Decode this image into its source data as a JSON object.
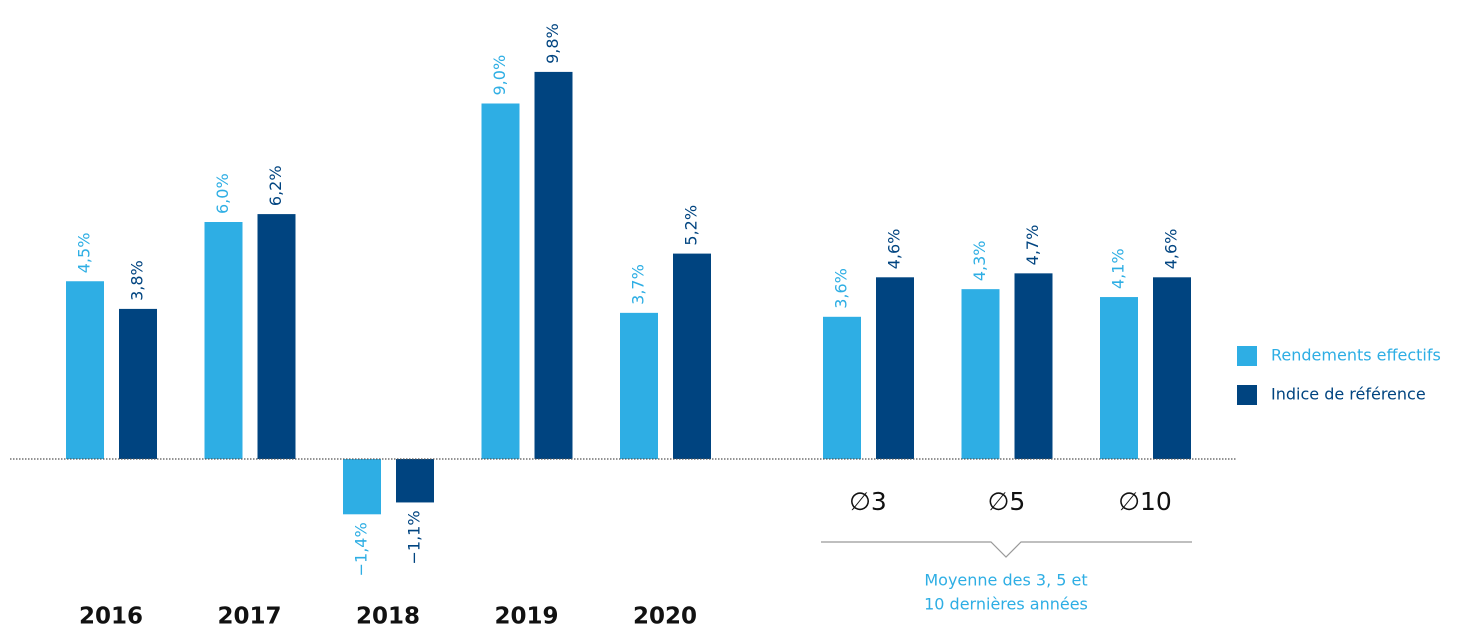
{
  "chart_data": {
    "type": "bar",
    "categories": [
      "2016",
      "2017",
      "2018",
      "2019",
      "2020",
      "∅3",
      "∅5",
      "∅10"
    ],
    "series": [
      {
        "name": "Rendements effectifs",
        "color": "#2eaee4",
        "values": [
          4.5,
          6.0,
          -1.4,
          9.0,
          3.7,
          3.6,
          4.3,
          4.1
        ],
        "value_labels": [
          "4,5%",
          "6,0%",
          "−1,4%",
          "9,0%",
          "3,7%",
          "3,6%",
          "4,3%",
          "4,1%"
        ]
      },
      {
        "name": "Indice de référence",
        "color": "#004480",
        "values": [
          3.8,
          6.2,
          -1.1,
          9.8,
          5.2,
          4.6,
          4.7,
          4.6
        ],
        "value_labels": [
          "3,8%",
          "6,2%",
          "−1,1%",
          "9,8%",
          "5,2%",
          "4,6%",
          "4,7%",
          "4,6%"
        ]
      }
    ],
    "annotation": [
      "Moyenne des 3, 5 et",
      "10 dernières années"
    ],
    "ylim": [
      -2,
      10
    ],
    "legend": "right"
  }
}
